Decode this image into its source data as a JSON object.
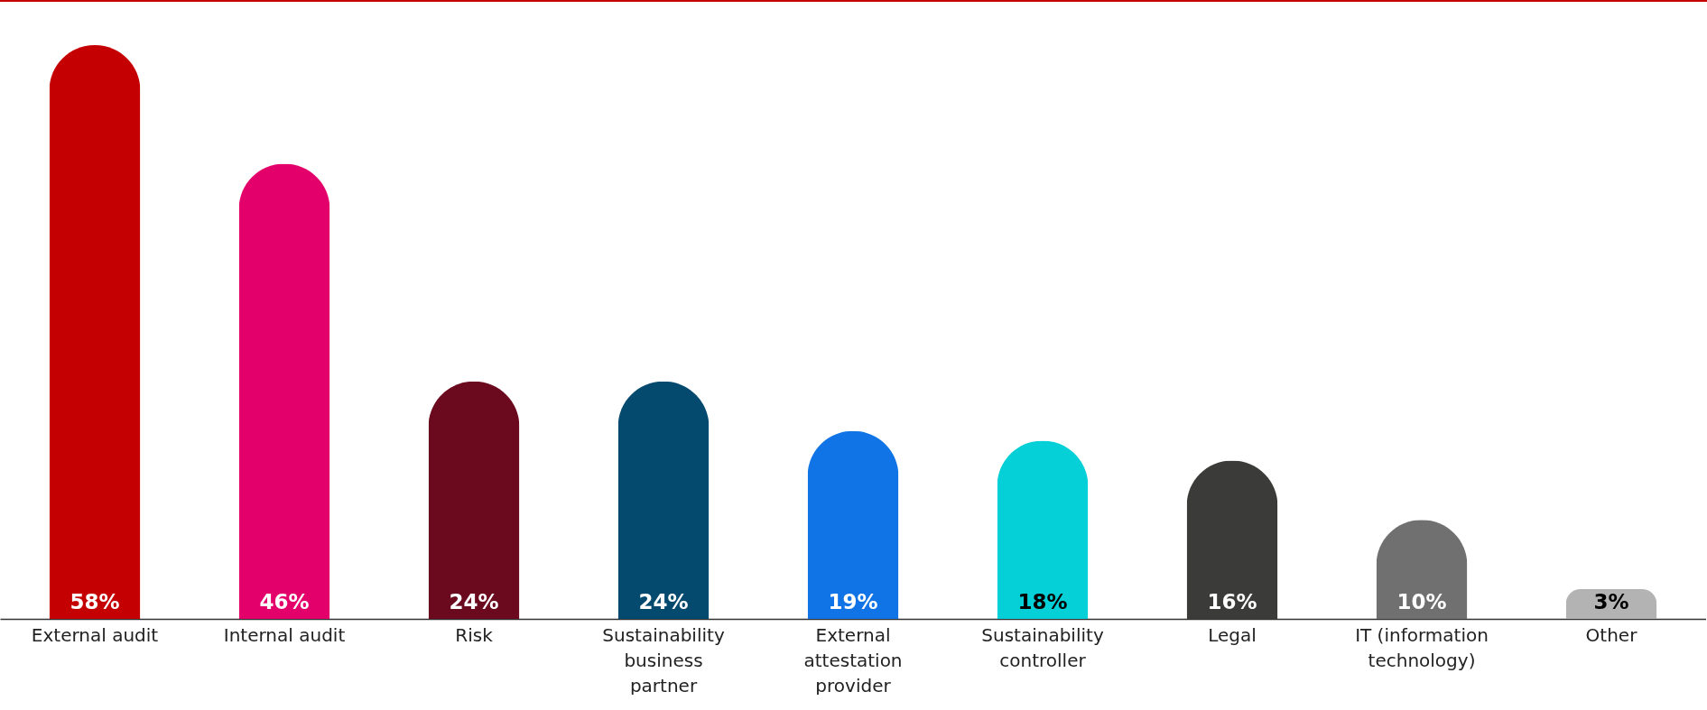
{
  "chart_data": {
    "type": "bar",
    "categories": [
      "External audit",
      "Internal audit",
      "Risk",
      "Sustainability business partner",
      "External attestation provider",
      "Sustainability controller",
      "Legal",
      "IT (information technology)",
      "Other"
    ],
    "values": [
      58,
      46,
      24,
      24,
      19,
      18,
      16,
      10,
      3
    ],
    "colors": [
      "#c50003",
      "#e4006b",
      "#6b0a1e",
      "#044a6f",
      "#1174e6",
      "#05d0d8",
      "#3b3b39",
      "#707070",
      "#b3b3b3"
    ],
    "value_labels": [
      "58%",
      "46%",
      "24%",
      "24%",
      "19%",
      "18%",
      "16%",
      "10%",
      "3%"
    ]
  }
}
